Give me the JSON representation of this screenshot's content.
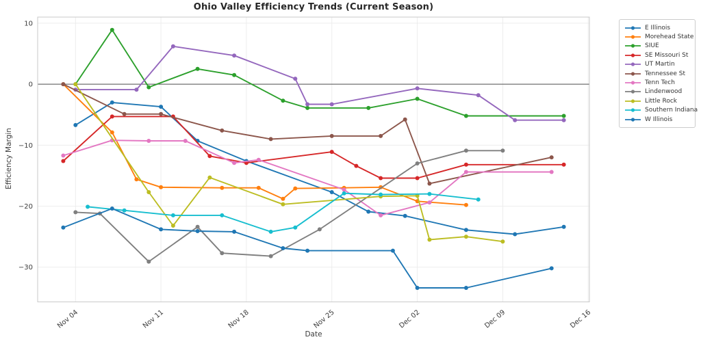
{
  "chart_data": {
    "type": "line",
    "title": "Ohio Valley Efficiency Trends (Current Season)",
    "xlabel": "Date",
    "ylabel": "Efficiency Margin",
    "x_unit": "days_since_Nov_01",
    "xlim": [
      -0.1,
      45.1
    ],
    "ylim": [
      -35.7,
      11.0
    ],
    "grid": true,
    "zero_line": 0,
    "legend_position": "outside-right-top",
    "x_ticks": [
      {
        "x": 3,
        "label": "Nov 04"
      },
      {
        "x": 10,
        "label": "Nov 11"
      },
      {
        "x": 17,
        "label": "Nov 18"
      },
      {
        "x": 24,
        "label": "Nov 25"
      },
      {
        "x": 31,
        "label": "Dec 02"
      },
      {
        "x": 38,
        "label": "Dec 09"
      },
      {
        "x": 45,
        "label": "Dec 16"
      }
    ],
    "y_ticks": [
      {
        "y": 10,
        "label": "10"
      },
      {
        "y": 0,
        "label": "0"
      },
      {
        "y": -10,
        "label": "−10"
      },
      {
        "y": -20,
        "label": "−20"
      },
      {
        "y": -30,
        "label": "−30"
      }
    ],
    "series": [
      {
        "name": "E Illinois",
        "color": "#1f77b4",
        "points": [
          [
            3,
            -6.7
          ],
          [
            6,
            -3.0
          ],
          [
            10,
            -3.7
          ],
          [
            13,
            -9.3
          ],
          [
            17,
            -12.6
          ],
          [
            24,
            -17.7
          ],
          [
            27,
            -20.9
          ],
          [
            30,
            -21.6
          ],
          [
            35,
            -23.9
          ],
          [
            39,
            -24.6
          ],
          [
            43,
            -23.4
          ]
        ]
      },
      {
        "name": "Morehead State",
        "color": "#ff7f0e",
        "points": [
          [
            2,
            0.0
          ],
          [
            6,
            -7.9
          ],
          [
            8,
            -15.6
          ],
          [
            10,
            -16.9
          ],
          [
            15,
            -17.0
          ],
          [
            18,
            -17.0
          ],
          [
            20,
            -18.8
          ],
          [
            21,
            -17.1
          ],
          [
            25,
            -17.0
          ],
          [
            28,
            -16.9
          ],
          [
            31,
            -19.2
          ],
          [
            35,
            -19.8
          ]
        ]
      },
      {
        "name": "SIUE",
        "color": "#2ca02c",
        "points": [
          [
            3,
            0.0
          ],
          [
            6,
            8.9
          ],
          [
            9,
            -0.5
          ],
          [
            13,
            2.5
          ],
          [
            16,
            1.5
          ],
          [
            20,
            -2.7
          ],
          [
            22,
            -3.9
          ],
          [
            27,
            -3.9
          ],
          [
            31,
            -2.4
          ],
          [
            35,
            -5.2
          ],
          [
            43,
            -5.2
          ]
        ]
      },
      {
        "name": "SE Missouri St",
        "color": "#d62728",
        "points": [
          [
            2,
            -12.6
          ],
          [
            6,
            -5.3
          ],
          [
            11,
            -5.3
          ],
          [
            14,
            -11.8
          ],
          [
            17,
            -12.9
          ],
          [
            24,
            -11.1
          ],
          [
            26,
            -13.4
          ],
          [
            28,
            -15.4
          ],
          [
            31,
            -15.4
          ],
          [
            35,
            -13.2
          ],
          [
            43,
            -13.2
          ]
        ]
      },
      {
        "name": "UT Martin",
        "color": "#9467bd",
        "points": [
          [
            3,
            -0.9
          ],
          [
            8,
            -0.9
          ],
          [
            11,
            6.2
          ],
          [
            16,
            4.7
          ],
          [
            21,
            0.9
          ],
          [
            22,
            -3.3
          ],
          [
            24,
            -3.3
          ],
          [
            31,
            -0.7
          ],
          [
            36,
            -1.8
          ],
          [
            39,
            -5.9
          ],
          [
            43,
            -5.9
          ]
        ]
      },
      {
        "name": "Tennessee St",
        "color": "#8c564b",
        "points": [
          [
            2,
            0.0
          ],
          [
            7,
            -4.9
          ],
          [
            10,
            -4.9
          ],
          [
            15,
            -7.6
          ],
          [
            19,
            -9.0
          ],
          [
            24,
            -8.5
          ],
          [
            28,
            -8.5
          ],
          [
            30,
            -5.8
          ],
          [
            32,
            -16.3
          ],
          [
            42,
            -12.0
          ]
        ]
      },
      {
        "name": "Tenn Tech",
        "color": "#e377c2",
        "points": [
          [
            2,
            -11.7
          ],
          [
            6,
            -9.2
          ],
          [
            9,
            -9.3
          ],
          [
            12,
            -9.3
          ],
          [
            16,
            -12.9
          ],
          [
            18,
            -12.4
          ],
          [
            25,
            -17.3
          ],
          [
            28,
            -21.5
          ],
          [
            32,
            -19.4
          ],
          [
            35,
            -14.4
          ],
          [
            42,
            -14.4
          ]
        ]
      },
      {
        "name": "Lindenwood",
        "color": "#7f7f7f",
        "points": [
          [
            3,
            -21.0
          ],
          [
            5,
            -21.2
          ],
          [
            9,
            -29.1
          ],
          [
            13,
            -23.4
          ],
          [
            15,
            -27.7
          ],
          [
            19,
            -28.2
          ],
          [
            23,
            -23.8
          ],
          [
            31,
            -13.0
          ],
          [
            35,
            -10.9
          ],
          [
            38,
            -10.9
          ]
        ]
      },
      {
        "name": "Little Rock",
        "color": "#bcbd22",
        "points": [
          [
            3,
            0.0
          ],
          [
            9,
            -17.7
          ],
          [
            11,
            -23.2
          ],
          [
            14,
            -15.3
          ],
          [
            20,
            -19.7
          ],
          [
            28,
            -18.4
          ],
          [
            31,
            -18.3
          ],
          [
            32,
            -25.5
          ],
          [
            35,
            -25.0
          ],
          [
            38,
            -25.8
          ]
        ]
      },
      {
        "name": "Southern Indiana",
        "color": "#17becf",
        "points": [
          [
            4,
            -20.1
          ],
          [
            7,
            -20.7
          ],
          [
            11,
            -21.5
          ],
          [
            15,
            -21.5
          ],
          [
            19,
            -24.2
          ],
          [
            21,
            -23.5
          ],
          [
            25,
            -17.9
          ],
          [
            28,
            -18.1
          ],
          [
            32,
            -18.0
          ],
          [
            36,
            -18.9
          ]
        ]
      },
      {
        "name": "W Illinois",
        "color": "#1f77b4",
        "points": [
          [
            2,
            -23.5
          ],
          [
            6,
            -20.4
          ],
          [
            10,
            -23.8
          ],
          [
            13,
            -24.1
          ],
          [
            16,
            -24.2
          ],
          [
            20,
            -26.9
          ],
          [
            22,
            -27.3
          ],
          [
            29,
            -27.3
          ],
          [
            31,
            -33.4
          ],
          [
            35,
            -33.4
          ],
          [
            42,
            -30.2
          ]
        ]
      }
    ],
    "style": {
      "grid_color": "#ebebeb",
      "spine_color": "#c9c9c9",
      "zero_line_color": "#4d4d4d",
      "tick_label_color": "#3b3b3b",
      "title_color": "#262626",
      "background": "#ffffff",
      "line_width": 1.9,
      "marker_radius": 3
    }
  }
}
